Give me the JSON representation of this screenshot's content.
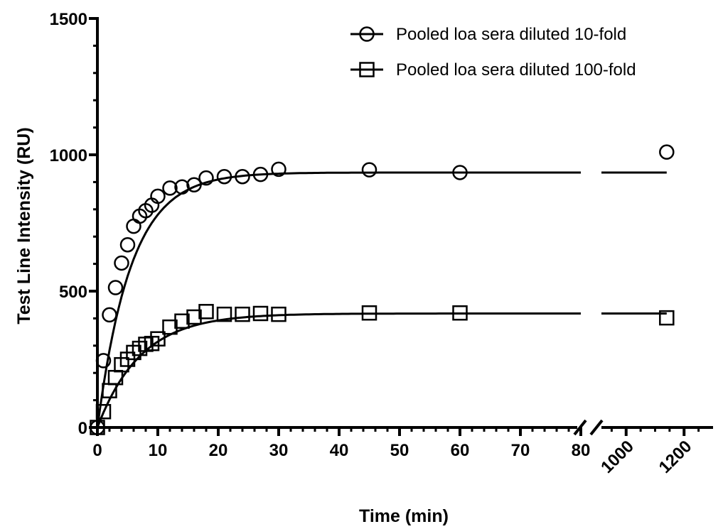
{
  "chart_data": {
    "type": "scatter",
    "xlabel": "Time (min)",
    "ylabel": "Test Line Intensity (RU)",
    "ylim": [
      0,
      1500
    ],
    "y_ticks": [
      0,
      500,
      1000,
      1500
    ],
    "x_segments": [
      {
        "range": [
          0,
          80
        ],
        "ticks": [
          0,
          10,
          20,
          30,
          40,
          50,
          60,
          70,
          80
        ]
      },
      {
        "range": [
          900,
          1300
        ],
        "ticks": [
          1000,
          1200
        ]
      }
    ],
    "axis_break": true,
    "grid": false,
    "legend_position": "top-right",
    "series": [
      {
        "name": "Pooled loa sera diluted 10-fold",
        "marker": "circle",
        "x": [
          0,
          1,
          2,
          3,
          4,
          5,
          6,
          7,
          8,
          9,
          10,
          12,
          14,
          16,
          18,
          21,
          24,
          27,
          30,
          45,
          60,
          1140
        ],
        "y": [
          0,
          245,
          413,
          513,
          603,
          670,
          738,
          775,
          795,
          815,
          848,
          878,
          882,
          890,
          915,
          920,
          920,
          928,
          947,
          945,
          935,
          1010
        ],
        "fit": {
          "model": "one-phase association",
          "y0": 0,
          "plateau": 935,
          "k": 0.18
        }
      },
      {
        "name": "Pooled loa sera diluted 100-fold",
        "marker": "square",
        "x": [
          0,
          1,
          2,
          3,
          4,
          5,
          6,
          7,
          8,
          9,
          10,
          12,
          14,
          16,
          18,
          21,
          24,
          27,
          30,
          45,
          60,
          1140
        ],
        "y": [
          0,
          58,
          135,
          183,
          230,
          250,
          275,
          290,
          305,
          308,
          325,
          368,
          390,
          405,
          425,
          415,
          415,
          418,
          415,
          420,
          420,
          402
        ],
        "fit": {
          "model": "one-phase association",
          "y0": 0,
          "plateau": 418,
          "k": 0.14
        }
      }
    ]
  }
}
